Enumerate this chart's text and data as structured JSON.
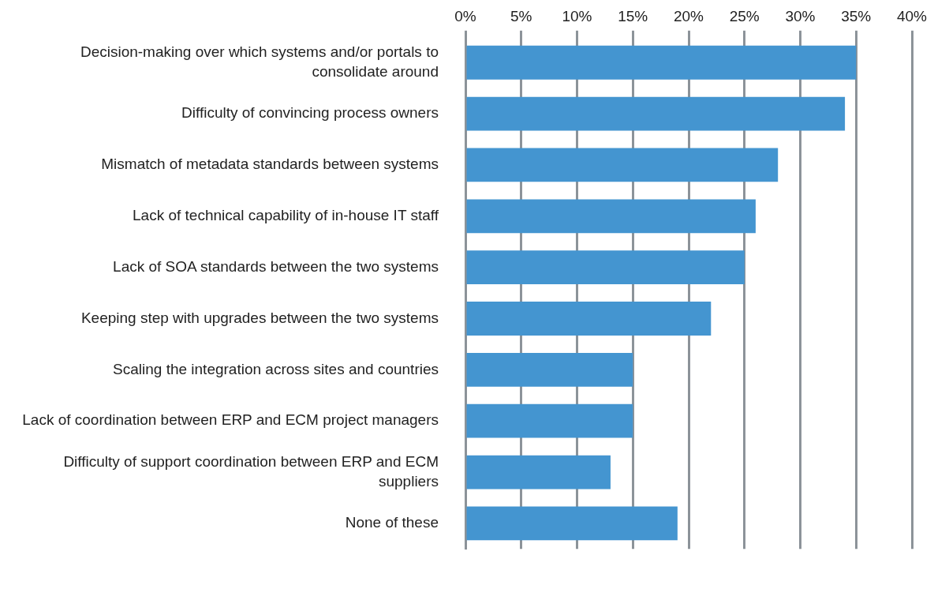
{
  "chart_data": {
    "type": "bar",
    "orientation": "horizontal",
    "categories": [
      "Decision-making over which systems and/or portals to consolidate around",
      "Difficulty of convincing process owners",
      "Mismatch of metadata standards between systems",
      "Lack of technical capability of in-house IT staff",
      "Lack of SOA standards between the two systems",
      "Keeping step with upgrades between the two systems",
      "Scaling the integration across sites and countries",
      "Lack of coordination between ERP and ECM project managers",
      "Difficulty of support coordination between ERP and ECM suppliers",
      "None of these"
    ],
    "values": [
      35,
      34,
      28,
      26,
      25,
      22,
      15,
      15,
      13,
      19
    ],
    "color": "#4495d0",
    "xlim": [
      0,
      40
    ],
    "xticks": [
      {
        "value": 0,
        "label": "0%"
      },
      {
        "value": 5,
        "label": "5%"
      },
      {
        "value": 10,
        "label": "10%"
      },
      {
        "value": 15,
        "label": "15%"
      },
      {
        "value": 20,
        "label": "20%"
      },
      {
        "value": 25,
        "label": "25%"
      },
      {
        "value": 30,
        "label": "30%"
      },
      {
        "value": 35,
        "label": "35%"
      },
      {
        "value": 40,
        "label": "40%"
      }
    ],
    "grid": "x"
  }
}
